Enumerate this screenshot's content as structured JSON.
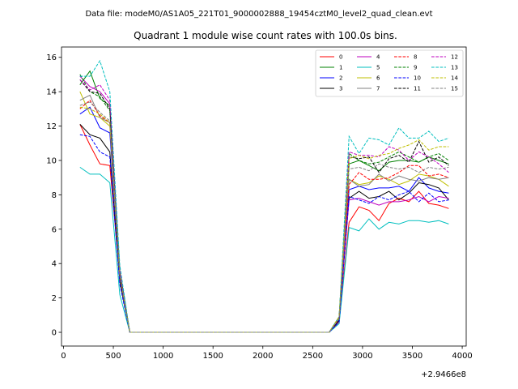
{
  "suptitle": "Data file: modeM0/AS1A05_221T01_9000002888_19454cztM0_level2_quad_clean.evt",
  "chart_data": {
    "type": "line",
    "title": "Quadrant 1 module wise count rates with 100.0s bins.",
    "xlabel": "",
    "ylabel": "",
    "x_offset_label": "+2.9466e8",
    "xlim": [
      -20,
      4040
    ],
    "ylim": [
      -0.8,
      16.6
    ],
    "xticks": [
      0,
      500,
      1000,
      1500,
      2000,
      2500,
      3000,
      3500,
      4000
    ],
    "yticks": [
      0,
      2,
      4,
      6,
      8,
      10,
      12,
      14,
      16
    ],
    "legend_position": "top-right",
    "x": [
      165,
      265,
      365,
      465,
      565,
      665,
      765,
      865,
      965,
      1065,
      1165,
      1265,
      1365,
      1465,
      1565,
      1665,
      1765,
      1865,
      1965,
      2065,
      2165,
      2265,
      2365,
      2465,
      2565,
      2665,
      2765,
      2865,
      2965,
      3065,
      3165,
      3265,
      3365,
      3465,
      3565,
      3665,
      3765,
      3865
    ],
    "series": [
      {
        "name": "0",
        "color": "#ff0000",
        "dash": "solid",
        "values": [
          12.1,
          10.9,
          9.8,
          9.7,
          3.2,
          0,
          0,
          0,
          0,
          0,
          0,
          0,
          0,
          0,
          0,
          0,
          0,
          0,
          0,
          0,
          0,
          0,
          0,
          0,
          0,
          0,
          0.6,
          6.4,
          7.3,
          7.1,
          6.5,
          7.5,
          7.8,
          7.6,
          8.2,
          7.5,
          7.4,
          7.2
        ]
      },
      {
        "name": "1",
        "color": "#008000",
        "dash": "solid",
        "values": [
          14.4,
          15.2,
          13.6,
          13.2,
          3.6,
          0,
          0,
          0,
          0,
          0,
          0,
          0,
          0,
          0,
          0,
          0,
          0,
          0,
          0,
          0,
          0,
          0,
          0,
          0,
          0,
          0,
          0.9,
          9.8,
          10.0,
          9.7,
          9.4,
          9.9,
          10.0,
          10.0,
          9.9,
          10.2,
          10.0,
          9.8
        ]
      },
      {
        "name": "2",
        "color": "#0000ff",
        "dash": "solid",
        "values": [
          12.7,
          13.1,
          11.9,
          11.6,
          3.3,
          0,
          0,
          0,
          0,
          0,
          0,
          0,
          0,
          0,
          0,
          0,
          0,
          0,
          0,
          0,
          0,
          0,
          0,
          0,
          0,
          0,
          0.7,
          8.3,
          8.5,
          8.3,
          8.4,
          8.4,
          8.5,
          8.2,
          9.0,
          8.4,
          8.2,
          8.1
        ]
      },
      {
        "name": "3",
        "color": "#000000",
        "dash": "solid",
        "values": [
          12.1,
          11.5,
          11.3,
          10.5,
          3.0,
          0,
          0,
          0,
          0,
          0,
          0,
          0,
          0,
          0,
          0,
          0,
          0,
          0,
          0,
          0,
          0,
          0,
          0,
          0,
          0,
          0,
          0.7,
          7.8,
          8.2,
          7.8,
          7.9,
          8.2,
          7.7,
          8.1,
          8.7,
          8.6,
          8.4,
          7.7
        ]
      },
      {
        "name": "4",
        "color": "#bf00bf",
        "dash": "solid",
        "values": [
          14.9,
          14.3,
          14.0,
          13.3,
          3.6,
          0,
          0,
          0,
          0,
          0,
          0,
          0,
          0,
          0,
          0,
          0,
          0,
          0,
          0,
          0,
          0,
          0,
          0,
          0,
          0,
          0,
          0.8,
          7.7,
          7.8,
          7.6,
          7.4,
          7.6,
          7.6,
          7.7,
          7.9,
          7.6,
          7.9,
          7.8
        ]
      },
      {
        "name": "5",
        "color": "#00bfbf",
        "dash": "solid",
        "values": [
          9.6,
          9.2,
          9.2,
          8.7,
          2.2,
          0,
          0,
          0,
          0,
          0,
          0,
          0,
          0,
          0,
          0,
          0,
          0,
          0,
          0,
          0,
          0,
          0,
          0,
          0,
          0,
          0,
          0.5,
          6.1,
          5.9,
          6.6,
          6.0,
          6.4,
          6.3,
          6.5,
          6.5,
          6.4,
          6.5,
          6.3
        ]
      },
      {
        "name": "6",
        "color": "#bfbf00",
        "dash": "solid",
        "values": [
          14.0,
          12.7,
          12.5,
          12.0,
          3.4,
          0,
          0,
          0,
          0,
          0,
          0,
          0,
          0,
          0,
          0,
          0,
          0,
          0,
          0,
          0,
          0,
          0,
          0,
          0,
          0,
          0,
          0.8,
          8.9,
          8.6,
          8.7,
          9.1,
          8.9,
          8.6,
          8.8,
          9.2,
          9.1,
          8.9,
          8.5
        ]
      },
      {
        "name": "7",
        "color": "#808080",
        "dash": "solid",
        "values": [
          13.5,
          13.8,
          12.5,
          12.2,
          3.3,
          0,
          0,
          0,
          0,
          0,
          0,
          0,
          0,
          0,
          0,
          0,
          0,
          0,
          0,
          0,
          0,
          0,
          0,
          0,
          0,
          0,
          0.8,
          8.9,
          8.5,
          8.6,
          9.2,
          8.8,
          9.1,
          8.9,
          8.8,
          9.0,
          8.9,
          9.0
        ]
      },
      {
        "name": "8",
        "color": "#ff0000",
        "dash": "dashed",
        "values": [
          13.0,
          13.5,
          12.6,
          12.2,
          3.3,
          0,
          0,
          0,
          0,
          0,
          0,
          0,
          0,
          0,
          0,
          0,
          0,
          0,
          0,
          0,
          0,
          0,
          0,
          0,
          0,
          0,
          0.8,
          8.6,
          9.3,
          8.9,
          8.9,
          9.0,
          9.3,
          9.7,
          9.7,
          9.1,
          9.2,
          9.0
        ]
      },
      {
        "name": "9",
        "color": "#008000",
        "dash": "dashed",
        "values": [
          15.0,
          14.0,
          13.7,
          12.9,
          3.5,
          0,
          0,
          0,
          0,
          0,
          0,
          0,
          0,
          0,
          0,
          0,
          0,
          0,
          0,
          0,
          0,
          0,
          0,
          0,
          0,
          0,
          0.9,
          10.4,
          10.0,
          9.8,
          9.9,
          10.2,
          10.5,
          10.2,
          9.9,
          10.2,
          10.4,
          10.0
        ]
      },
      {
        "name": "10",
        "color": "#0000ff",
        "dash": "dashed",
        "values": [
          11.5,
          11.4,
          10.5,
          10.2,
          2.8,
          0,
          0,
          0,
          0,
          0,
          0,
          0,
          0,
          0,
          0,
          0,
          0,
          0,
          0,
          0,
          0,
          0,
          0,
          0,
          0,
          0,
          0.6,
          7.9,
          7.7,
          7.5,
          7.9,
          7.7,
          8.0,
          8.2,
          7.6,
          8.1,
          7.6,
          7.7
        ]
      },
      {
        "name": "11",
        "color": "#000000",
        "dash": "dashed",
        "values": [
          14.7,
          14.0,
          13.9,
          13.0,
          3.5,
          0,
          0,
          0,
          0,
          0,
          0,
          0,
          0,
          0,
          0,
          0,
          0,
          0,
          0,
          0,
          0,
          0,
          0,
          0,
          0,
          0,
          0.8,
          10.2,
          10.1,
          10.2,
          9.3,
          10.1,
          10.3,
          9.9,
          11.1,
          9.9,
          10.2,
          9.7
        ]
      },
      {
        "name": "12",
        "color": "#bf00bf",
        "dash": "dashed",
        "values": [
          14.7,
          14.1,
          14.4,
          13.5,
          3.6,
          0,
          0,
          0,
          0,
          0,
          0,
          0,
          0,
          0,
          0,
          0,
          0,
          0,
          0,
          0,
          0,
          0,
          0,
          0,
          0,
          0,
          0.8,
          10.5,
          10.3,
          10.3,
          10.2,
          10.8,
          10.6,
          10.0,
          10.5,
          10.2,
          9.8,
          9.3
        ]
      },
      {
        "name": "13",
        "color": "#00bfbf",
        "dash": "dashed",
        "values": [
          14.9,
          14.9,
          15.8,
          14.0,
          3.9,
          0,
          0,
          0,
          0,
          0,
          0,
          0,
          0,
          0,
          0,
          0,
          0,
          0,
          0,
          0,
          0,
          0,
          0,
          0,
          0,
          0,
          0.9,
          11.4,
          10.4,
          11.3,
          11.2,
          10.9,
          11.9,
          11.3,
          11.3,
          11.7,
          11.1,
          11.3
        ]
      },
      {
        "name": "14",
        "color": "#bfbf00",
        "dash": "dashed",
        "values": [
          13.1,
          13.0,
          12.7,
          12.2,
          3.3,
          0,
          0,
          0,
          0,
          0,
          0,
          0,
          0,
          0,
          0,
          0,
          0,
          0,
          0,
          0,
          0,
          0,
          0,
          0,
          0,
          0,
          0.9,
          10.1,
          10.3,
          10.1,
          10.3,
          10.4,
          10.7,
          10.9,
          11.2,
          10.6,
          10.8,
          10.8
        ]
      },
      {
        "name": "15",
        "color": "#808080",
        "dash": "dashed",
        "values": [
          13.2,
          13.4,
          12.8,
          12.3,
          3.3,
          0,
          0,
          0,
          0,
          0,
          0,
          0,
          0,
          0,
          0,
          0,
          0,
          0,
          0,
          0,
          0,
          0,
          0,
          0,
          0,
          0,
          0.8,
          9.5,
          9.6,
          9.4,
          9.8,
          9.6,
          9.5,
          9.6,
          9.3,
          9.6,
          9.5,
          9.6
        ]
      }
    ]
  }
}
